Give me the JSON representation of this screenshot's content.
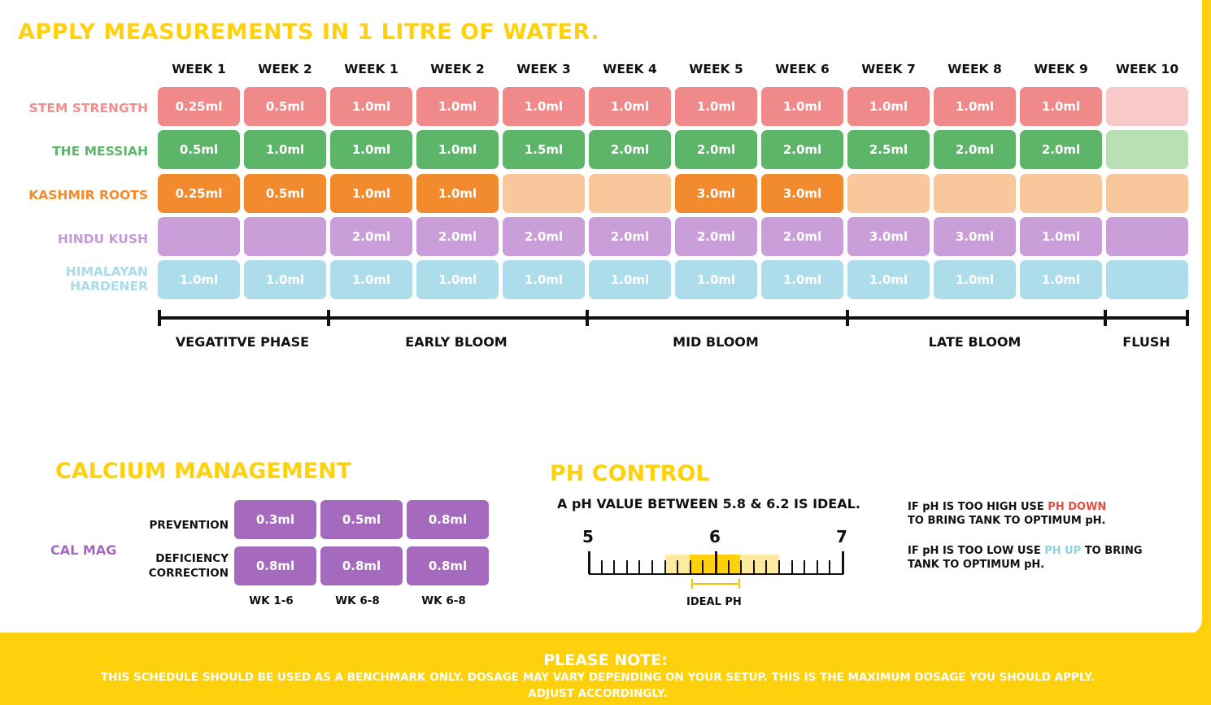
{
  "title": "APPLY MEASUREMENTS IN 1 LITRE OF WATER.",
  "weeks": [
    "WEEK 1",
    "WEEK 2",
    "WEEK 1",
    "WEEK 2",
    "WEEK 3",
    "WEEK 4",
    "WEEK 5",
    "WEEK 6",
    "WEEK 7",
    "WEEK 8",
    "WEEK 9",
    "WEEK 10"
  ],
  "products": [
    {
      "name": "STEM STRENGTH",
      "label_color": "#EF8E8E",
      "fill": "#F08A8A",
      "light": "#F8C9C9",
      "doses": [
        "0.25ml",
        "0.5ml",
        "1.0ml",
        "1.0ml",
        "1.0ml",
        "1.0ml",
        "1.0ml",
        "1.0ml",
        "1.0ml",
        "1.0ml",
        "1.0ml",
        ""
      ],
      "light_cells": [
        11
      ]
    },
    {
      "name": "THE MESSIAH",
      "label_color": "#5DB56A",
      "fill": "#5DB56A",
      "light": "#B9DFB5",
      "doses": [
        "0.5ml",
        "1.0ml",
        "1.0ml",
        "1.0ml",
        "1.5ml",
        "2.0ml",
        "2.0ml",
        "2.0ml",
        "2.5ml",
        "2.0ml",
        "2.0ml",
        ""
      ],
      "light_cells": [
        11
      ]
    },
    {
      "name": "KASHMIR ROOTS",
      "label_color": "#F28A2E",
      "fill": "#F28A2E",
      "light": "#F8C89C",
      "doses": [
        "0.25ml",
        "0.5ml",
        "1.0ml",
        "1.0ml",
        "",
        "",
        "3.0ml",
        "3.0ml",
        "",
        "",
        "",
        ""
      ],
      "light_cells": [
        4,
        5,
        8,
        9,
        10,
        11
      ]
    },
    {
      "name": "HINDU KUSH",
      "label_color": "#C69AD6",
      "fill": "#C99ED9",
      "light": "#C99ED9",
      "doses": [
        "",
        "",
        "2.0ml",
        "2.0ml",
        "2.0ml",
        "2.0ml",
        "2.0ml",
        "2.0ml",
        "3.0ml",
        "3.0ml",
        "1.0ml",
        ""
      ],
      "light_cells": []
    },
    {
      "name": "HIMALAYAN HARDENER",
      "label_lines": [
        "HIMALAYAN",
        "HARDENER"
      ],
      "label_color": "#A9DBE8",
      "fill": "#ADDDEA",
      "light": "#ADDDEA",
      "doses": [
        "1.0ml",
        "1.0ml",
        "1.0ml",
        "1.0ml",
        "1.0ml",
        "1.0ml",
        "1.0ml",
        "1.0ml",
        "1.0ml",
        "1.0ml",
        "1.0ml",
        ""
      ],
      "light_cells": []
    }
  ],
  "phases": [
    "VEGATITVE PHASE",
    "EARLY BLOOM",
    "MID BLOOM",
    "LATE BLOOM",
    "FLUSH"
  ],
  "calcium": {
    "title": "CALCIUM MANAGEMENT",
    "product": "CAL MAG",
    "rows": [
      {
        "label": "PREVENTION",
        "values": [
          "0.3ml",
          "0.5ml",
          "0.8ml"
        ]
      },
      {
        "label_lines": [
          "DEFICIENCY",
          "CORRECTION"
        ],
        "values": [
          "0.8ml",
          "0.8ml",
          "0.8ml"
        ]
      }
    ],
    "columns": [
      "WK 1-6",
      "WK 6-8",
      "WK 6-8"
    ]
  },
  "ph": {
    "title": "PH CONTROL",
    "ideal_text": "A pH VALUE BETWEEN 5.8 & 6.2 IS IDEAL.",
    "scale_labels": [
      "5",
      "6",
      "7"
    ],
    "ideal_label": "IDEAL PH",
    "ideal_range": [
      5.8,
      6.2
    ],
    "note_high": {
      "prefix": "IF pH IS TOO HIGH USE ",
      "product": "PH DOWN",
      "suffix": "TO BRING TANK TO OPTIMUM pH."
    },
    "note_low": {
      "prefix": "IF pH IS TOO LOW USE ",
      "product": "PH UP",
      "middle": " TO BRING",
      "suffix": "TANK TO OPTIMUM pH."
    }
  },
  "note": {
    "title": "PLEASE NOTE:",
    "text": "THIS SCHEDULE SHOULD BE USED AS A BENCHMARK ONLY. DOSAGE MAY VARY DEPENDING ON YOUR SETUP. THIS IS THE MAXIMUM DOSAGE YOU SHOULD APPLY. ADJUST ACCORDINGLY."
  }
}
